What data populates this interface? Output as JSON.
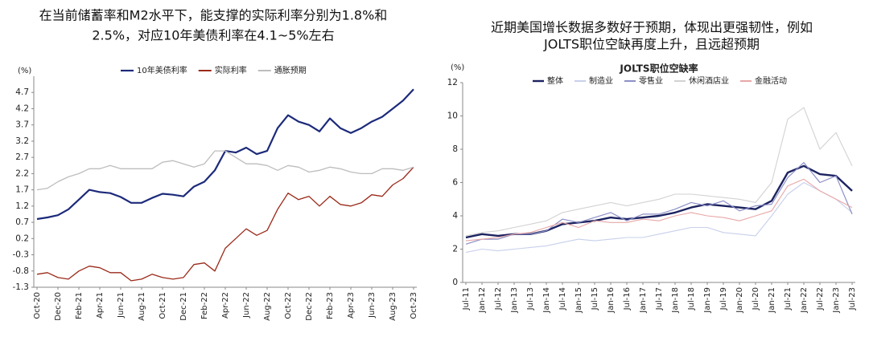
{
  "chart_data": [
    {
      "type": "line",
      "title": [
        "在当前储蓄率和M2水平下，能支撑的实际利率分别为1.8%和",
        "2.5%，对应10年美债利率在4.1~5%左右"
      ],
      "y_label": "(%)",
      "categories": [
        "Oct-20",
        null,
        "Dec-20",
        null,
        "Feb-21",
        null,
        "Apr-21",
        null,
        "Jun-21",
        null,
        "Aug-21",
        null,
        "Oct-21",
        null,
        "Dec-21",
        null,
        "Feb-22",
        null,
        "Apr-22",
        null,
        "Jun-22",
        null,
        "Aug-22",
        null,
        "Oct-22",
        null,
        "Dec-22",
        null,
        "Feb-23",
        null,
        "Apr-23",
        null,
        "Jun-23",
        null,
        "Aug-23",
        null,
        "Oct-23"
      ],
      "series": [
        {
          "name": "10年美债利率",
          "color": "#1c2a7a",
          "values": [
            0.8,
            0.85,
            0.92,
            1.1,
            1.4,
            1.7,
            1.63,
            1.6,
            1.48,
            1.3,
            1.3,
            1.45,
            1.58,
            1.55,
            1.5,
            1.8,
            1.95,
            2.3,
            2.9,
            2.85,
            3.0,
            2.8,
            2.9,
            3.6,
            4.0,
            3.8,
            3.7,
            3.5,
            3.9,
            3.6,
            3.45,
            3.6,
            3.8,
            3.95,
            4.2,
            4.45,
            4.8
          ]
        },
        {
          "name": "实际利率",
          "color": "#9a2a1a",
          "values": [
            -0.9,
            -0.85,
            -1.0,
            -1.05,
            -0.8,
            -0.65,
            -0.7,
            -0.85,
            -0.85,
            -1.1,
            -1.05,
            -0.9,
            -1.0,
            -1.05,
            -1.0,
            -0.6,
            -0.55,
            -0.8,
            -0.1,
            0.2,
            0.5,
            0.3,
            0.45,
            1.1,
            1.6,
            1.4,
            1.5,
            1.2,
            1.5,
            1.25,
            1.2,
            1.3,
            1.55,
            1.5,
            1.85,
            2.05,
            2.4
          ]
        },
        {
          "name": "通胀预期",
          "color": "#bdbdbd",
          "values": [
            1.7,
            1.75,
            1.95,
            2.1,
            2.2,
            2.35,
            2.35,
            2.45,
            2.35,
            2.35,
            2.35,
            2.35,
            2.55,
            2.6,
            2.5,
            2.4,
            2.5,
            2.9,
            2.9,
            2.7,
            2.5,
            2.5,
            2.45,
            2.3,
            2.45,
            2.4,
            2.25,
            2.3,
            2.4,
            2.35,
            2.25,
            2.2,
            2.2,
            2.35,
            2.35,
            2.3,
            2.4
          ]
        }
      ],
      "ylim": [
        -1.3,
        5.2
      ],
      "yticks": [
        -1.3,
        -0.8,
        -0.3,
        0.2,
        0.7,
        1.2,
        1.7,
        2.2,
        2.7,
        3.2,
        3.7,
        4.2,
        4.7
      ]
    },
    {
      "type": "line",
      "title": [
        "近期美国增长数据多数好于预期，体现出更强韧性，例如",
        "JOLTS职位空缺再度上升，且远超预期"
      ],
      "subtitle": "JOLTS职位空缺率",
      "y_label": "(%)",
      "categories": [
        "Jul-11",
        "Jan-12",
        "Jul-12",
        "Jan-13",
        "Jul-13",
        "Jan-14",
        "Jul-14",
        "Jan-15",
        "Jul-15",
        "Jan-16",
        "Jul-16",
        "Jan-17",
        "Jul-17",
        "Jan-18",
        "Jul-18",
        "Jan-19",
        "Jul-19",
        "Jan-20",
        "Jul-20",
        "Jan-21",
        "Jul-21",
        "Jan-22",
        "Jul-22",
        "Jan-23",
        "Jul-23"
      ],
      "series": [
        {
          "name": "整体",
          "color": "#1c2360",
          "values": [
            2.7,
            2.9,
            2.8,
            2.9,
            2.9,
            3.1,
            3.5,
            3.6,
            3.7,
            3.9,
            3.8,
            3.9,
            4.0,
            4.2,
            4.5,
            4.7,
            4.6,
            4.5,
            4.4,
            4.9,
            6.6,
            7.0,
            6.5,
            6.4,
            5.5
          ]
        },
        {
          "name": "制造业",
          "color": "#c8d0ea",
          "values": [
            1.8,
            2.0,
            1.9,
            2.0,
            2.1,
            2.2,
            2.4,
            2.6,
            2.5,
            2.6,
            2.7,
            2.7,
            2.9,
            3.1,
            3.3,
            3.3,
            3.0,
            2.9,
            2.8,
            4.0,
            5.3,
            6.0,
            5.5,
            5.0,
            4.2
          ]
        },
        {
          "name": "零售业",
          "color": "#8c8fc6",
          "values": [
            2.3,
            2.6,
            2.6,
            2.9,
            2.9,
            3.1,
            3.8,
            3.6,
            3.9,
            4.2,
            3.7,
            4.1,
            4.1,
            4.4,
            4.8,
            4.6,
            4.9,
            4.3,
            4.6,
            4.7,
            6.3,
            7.2,
            6.0,
            6.4,
            4.1
          ]
        },
        {
          "name": "休闲酒店业",
          "color": "#d2d2d2",
          "values": [
            2.8,
            3.0,
            3.1,
            3.3,
            3.5,
            3.7,
            4.2,
            4.4,
            4.6,
            4.8,
            4.6,
            4.8,
            5.0,
            5.3,
            5.3,
            5.2,
            5.1,
            5.0,
            4.8,
            6.0,
            9.8,
            10.5,
            8.0,
            9.0,
            7.0
          ]
        },
        {
          "name": "金融活动",
          "color": "#e8a7a7",
          "values": [
            2.5,
            2.6,
            2.7,
            2.9,
            3.0,
            3.3,
            3.6,
            3.3,
            3.7,
            3.6,
            3.6,
            3.8,
            3.7,
            4.0,
            4.2,
            4.0,
            3.9,
            3.7,
            4.0,
            4.3,
            5.8,
            6.2,
            5.5,
            5.0,
            4.5
          ]
        }
      ],
      "ylim": [
        0,
        12
      ],
      "yticks": [
        0,
        2,
        4,
        6,
        8,
        10,
        12
      ]
    }
  ]
}
